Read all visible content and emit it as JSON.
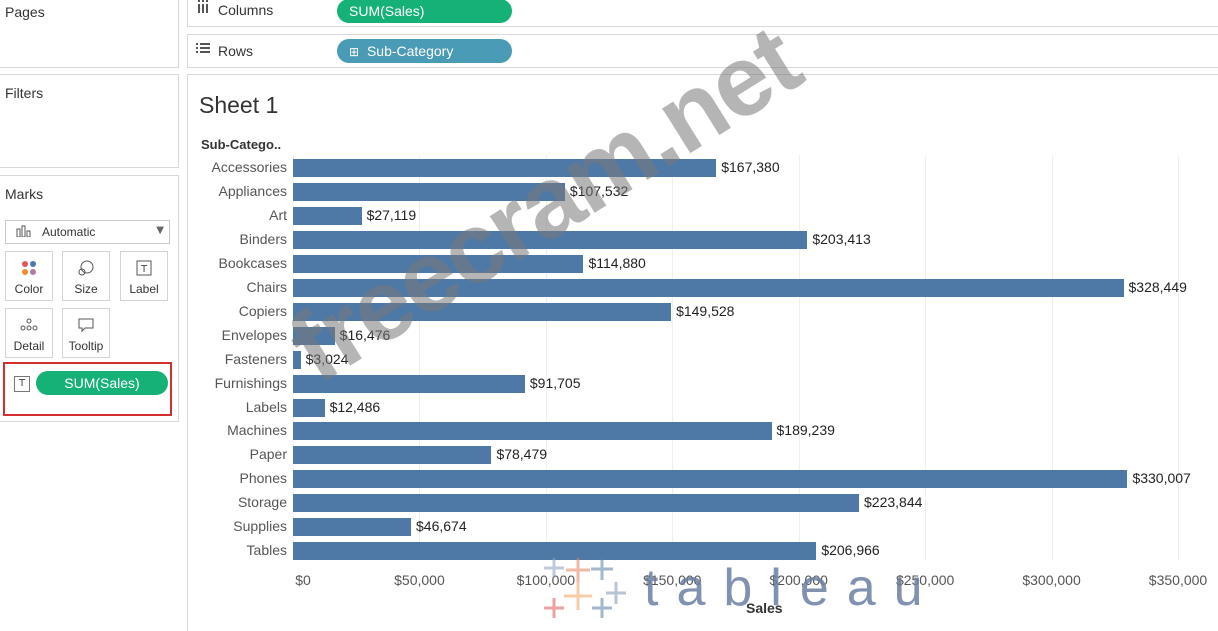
{
  "shelves": {
    "pages_title": "Pages",
    "filters_title": "Filters",
    "marks_title": "Marks",
    "columns_label": "Columns",
    "columns_icon": "columns-icon",
    "columns_pill": "SUM(Sales)",
    "rows_label": "Rows",
    "rows_icon": "rows-icon",
    "rows_pill": "Sub-Category",
    "rows_pill_icon": "expand-plus-icon"
  },
  "marks": {
    "type_value": "Automatic",
    "type_icon": "bar-chart-icon",
    "cards": [
      {
        "label": "Color",
        "icon": "color-dots-icon"
      },
      {
        "label": "Size",
        "icon": "size-circles-icon"
      },
      {
        "label": "Label",
        "icon": "label-t-icon"
      },
      {
        "label": "Detail",
        "icon": "detail-dots-icon"
      },
      {
        "label": "Tooltip",
        "icon": "tooltip-speech-icon"
      }
    ],
    "label_field_icon": "label-t-icon",
    "label_field_pill": "SUM(Sales)",
    "highlight_color": "#d32f2f"
  },
  "sheet": {
    "title": "Sheet 1"
  },
  "watermark": "freecram.net",
  "logo_text": "tableau",
  "colors": {
    "bar": "#4e79a7",
    "pill_measure": "#16b177",
    "pill_dimension": "#4a9bb5"
  },
  "chart_data": {
    "type": "bar",
    "orientation": "horizontal",
    "category_header": "Sub-Catego..",
    "xlabel": "Sales",
    "xlim": [
      0,
      350000
    ],
    "xticks": [
      "$0",
      "$50,000",
      "$100,000",
      "$150,000",
      "$200,000",
      "$250,000",
      "$300,000",
      "$350,000"
    ],
    "grid": true,
    "categories": [
      "Accessories",
      "Appliances",
      "Art",
      "Binders",
      "Bookcases",
      "Chairs",
      "Copiers",
      "Envelopes",
      "Fasteners",
      "Furnishings",
      "Labels",
      "Machines",
      "Paper",
      "Phones",
      "Storage",
      "Supplies",
      "Tables"
    ],
    "values": [
      167380,
      107532,
      27119,
      203413,
      114880,
      328449,
      149528,
      16476,
      3024,
      91705,
      12486,
      189239,
      78479,
      330007,
      223844,
      46674,
      206966
    ],
    "value_labels": [
      "$167,380",
      "$107,532",
      "$27,119",
      "$203,413",
      "$114,880",
      "$328,449",
      "$149,528",
      "$16,476",
      "$3,024",
      "$91,705",
      "$12,486",
      "$189,239",
      "$78,479",
      "$330,007",
      "$223,844",
      "$46,674",
      "$206,966"
    ]
  }
}
